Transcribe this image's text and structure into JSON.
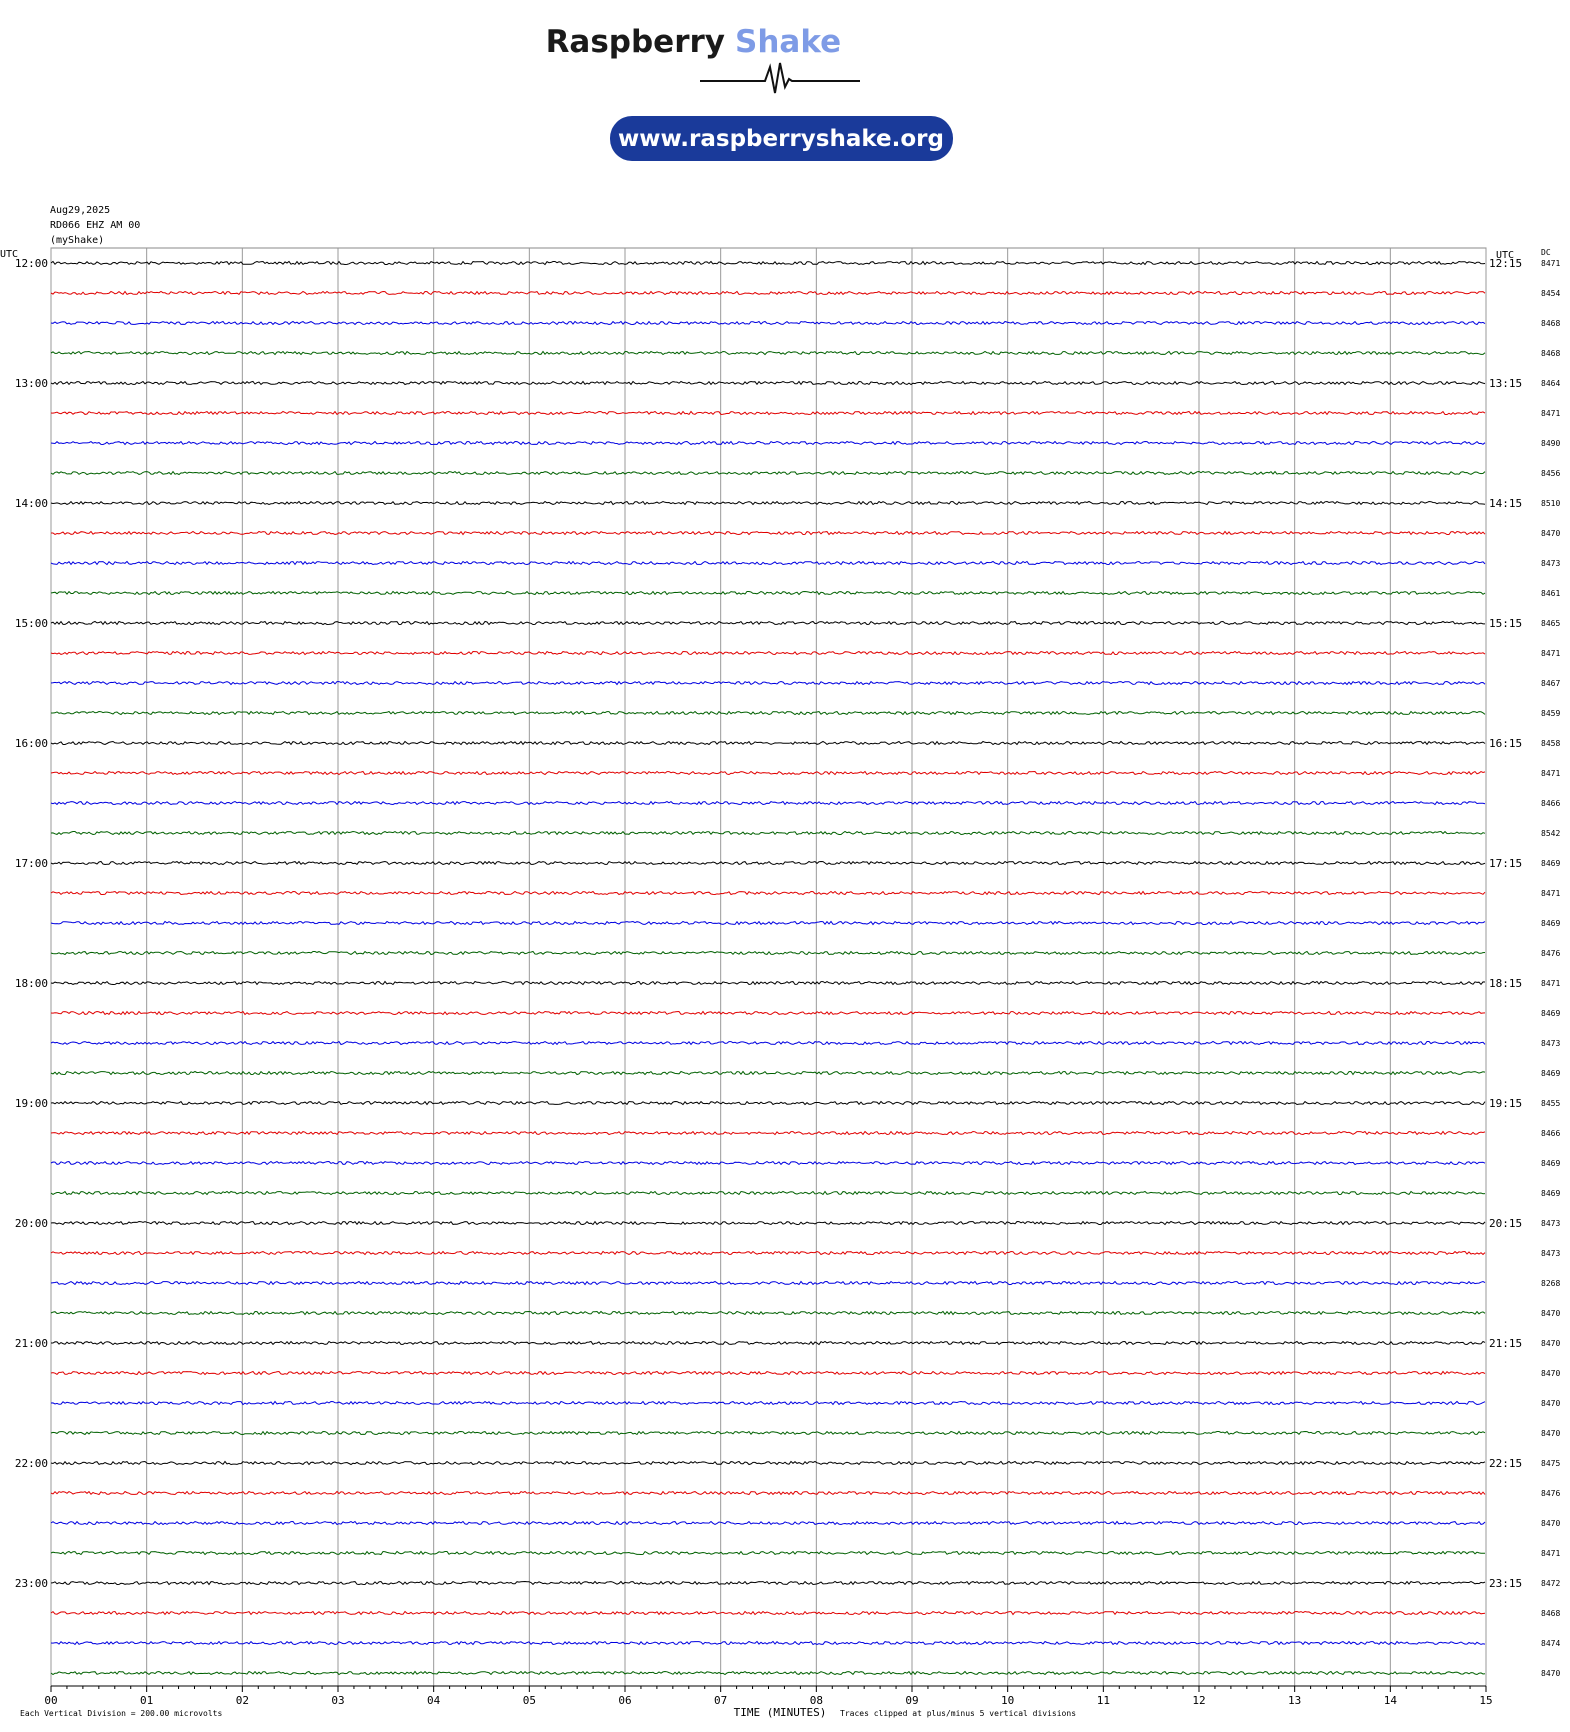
{
  "header": {
    "brand_dark": "Raspberry",
    "brand_light": "Shake",
    "url": "www.raspberryshake.org"
  },
  "info": [
    "Aug29,2025",
    "RD066 EHZ AM 00",
    "(myShake)"
  ],
  "left_axis_label": "UTC",
  "right_axis_label": "UTC",
  "dc_label": "DC",
  "left_times": [
    "12:00",
    "13:00",
    "14:00",
    "15:00",
    "16:00",
    "17:00",
    "18:00",
    "19:00",
    "20:00",
    "21:00",
    "22:00",
    "23:00"
  ],
  "right_times": [
    "12:15",
    "13:15",
    "14:15",
    "15:15",
    "16:15",
    "17:15",
    "18:15",
    "19:15",
    "20:15",
    "21:15",
    "22:15",
    "23:15"
  ],
  "dc_values": [
    8471,
    8454,
    8468,
    8468,
    8464,
    8471,
    8490,
    8456,
    8510,
    8470,
    8473,
    8461,
    8465,
    8471,
    8467,
    8459,
    8458,
    8471,
    8466,
    8542,
    8469,
    8471,
    8469,
    8476,
    8471,
    8469,
    8473,
    8469,
    8455,
    8466,
    8469,
    8469,
    8473,
    8473,
    8268,
    8470,
    8470,
    8470,
    8470,
    8470,
    8475,
    8476,
    8470,
    8471,
    8472,
    8468,
    8474,
    8470
  ],
  "trace_colors": [
    "#000000",
    "#e00000",
    "#0000e0",
    "#006000"
  ],
  "x_ticks": [
    "00",
    "01",
    "02",
    "03",
    "04",
    "05",
    "06",
    "07",
    "08",
    "09",
    "10",
    "11",
    "12",
    "13",
    "14",
    "15"
  ],
  "footer": {
    "left": "Each Vertical Division =  200.00 microvolts",
    "center": "TIME (MINUTES)",
    "right": "Traces clipped at plus/minus 5 vertical divisions"
  }
}
